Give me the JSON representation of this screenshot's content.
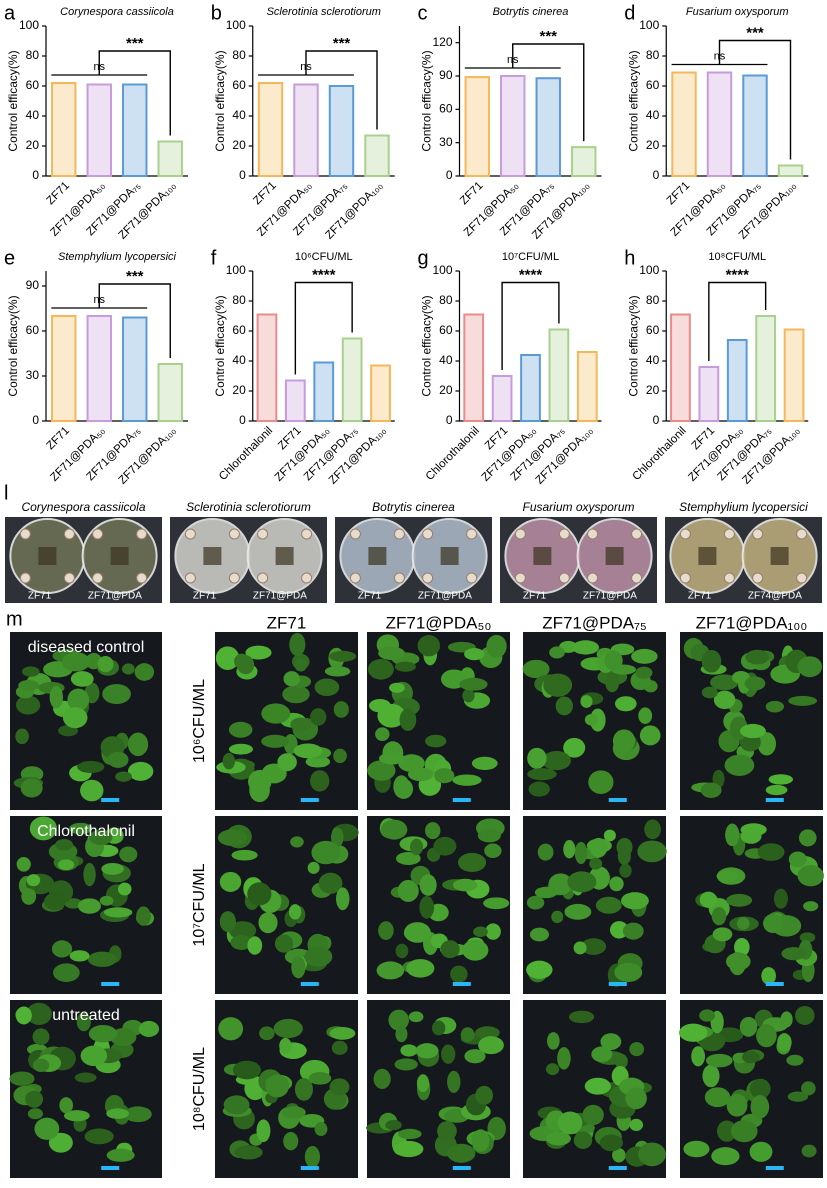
{
  "chart_data": [
    {
      "type": "bar",
      "panel": "a",
      "title": "Corynespora cassiicola",
      "title_italic": true,
      "ylabel": "Control efficacy(%)",
      "categories": [
        "ZF71",
        "ZF71@PDA₅₀",
        "ZF71@PDA₇₅",
        "ZF71@PDA₁₀₀"
      ],
      "values": [
        62,
        61,
        61,
        23
      ],
      "colors": [
        "#f4b85a",
        "#c79bdc",
        "#5b9bd5",
        "#a9d18e"
      ],
      "ylim": [
        0,
        100
      ],
      "yticks": [
        0,
        20,
        40,
        60,
        80,
        100
      ],
      "significance": [
        {
          "label": "ns",
          "categories": [
            "ZF71",
            "ZF71@PDA₇₅"
          ]
        },
        {
          "label": "***",
          "categories": [
            "ZF71@PDA₅₀",
            "ZF71@PDA₁₀₀"
          ]
        }
      ]
    },
    {
      "type": "bar",
      "panel": "b",
      "title": "Sclerotinia sclerotiorum",
      "title_italic": true,
      "ylabel": "Control efficacy(%)",
      "categories": [
        "ZF71",
        "ZF71@PDA₅₀",
        "ZF71@PDA₇₅",
        "ZF71@PDA₁₀₀"
      ],
      "values": [
        62,
        61,
        60,
        27
      ],
      "colors": [
        "#f4b85a",
        "#c79bdc",
        "#5b9bd5",
        "#a9d18e"
      ],
      "ylim": [
        0,
        100
      ],
      "yticks": [
        0,
        20,
        40,
        60,
        80,
        100
      ],
      "significance": [
        {
          "label": "ns",
          "categories": [
            "ZF71",
            "ZF71@PDA₇₅"
          ]
        },
        {
          "label": "***",
          "categories": [
            "ZF71@PDA₅₀",
            "ZF71@PDA₁₀₀"
          ]
        }
      ]
    },
    {
      "type": "bar",
      "panel": "c",
      "title": "Botrytis cinerea",
      "title_italic": true,
      "ylabel": "Control efficacy(%)",
      "categories": [
        "ZF71",
        "ZF71@PDA₅₀",
        "ZF71@PDA₇₅",
        "ZF71@PDA₁₀₀"
      ],
      "values": [
        89,
        90,
        88,
        26
      ],
      "colors": [
        "#f4b85a",
        "#c79bdc",
        "#5b9bd5",
        "#a9d18e"
      ],
      "ylim": [
        0,
        135
      ],
      "yticks": [
        0,
        30,
        60,
        90,
        120
      ],
      "significance": [
        {
          "label": "ns",
          "categories": [
            "ZF71",
            "ZF71@PDA₇₅"
          ]
        },
        {
          "label": "***",
          "categories": [
            "ZF71@PDA₅₀",
            "ZF71@PDA₁₀₀"
          ]
        }
      ]
    },
    {
      "type": "bar",
      "panel": "d",
      "title": "Fusarium oxysporum",
      "title_italic": true,
      "ylabel": "Control efficacy(%)",
      "categories": [
        "ZF71",
        "ZF71@PDA₅₀",
        "ZF71@PDA₇₅",
        "ZF71@PDA₁₀₀"
      ],
      "values": [
        69,
        69,
        67,
        7
      ],
      "colors": [
        "#f4b85a",
        "#c79bdc",
        "#5b9bd5",
        "#a9d18e"
      ],
      "ylim": [
        0,
        100
      ],
      "yticks": [
        0,
        20,
        40,
        60,
        80,
        100
      ],
      "significance": [
        {
          "label": "ns",
          "categories": [
            "ZF71",
            "ZF71@PDA₇₅"
          ]
        },
        {
          "label": "***",
          "categories": [
            "ZF71@PDA₅₀",
            "ZF71@PDA₁₀₀"
          ]
        }
      ]
    },
    {
      "type": "bar",
      "panel": "e",
      "title": "Stemphylium lycopersici",
      "title_italic": true,
      "ylabel": "Control efficacy(%)",
      "categories": [
        "ZF71",
        "ZF71@PDA₅₀",
        "ZF71@PDA₇₅",
        "ZF71@PDA₁₀₀"
      ],
      "values": [
        70,
        70,
        69,
        38
      ],
      "colors": [
        "#f4b85a",
        "#c79bdc",
        "#5b9bd5",
        "#a9d18e"
      ],
      "ylim": [
        0,
        100
      ],
      "yticks": [
        0,
        30,
        60,
        90
      ],
      "significance": [
        {
          "label": "ns",
          "categories": [
            "ZF71",
            "ZF71@PDA₇₅"
          ]
        },
        {
          "label": "***",
          "categories": [
            "ZF71@PDA₅₀",
            "ZF71@PDA₁₀₀"
          ]
        }
      ]
    },
    {
      "type": "bar",
      "panel": "f",
      "title": "10⁶CFU/ML",
      "title_italic": false,
      "ylabel": "Control efficacy(%)",
      "categories": [
        "Chlorothalonil",
        "ZF71",
        "ZF71@PDA₅₀",
        "ZF71@PDA₇₅",
        "ZF71@PDA₁₀₀"
      ],
      "values": [
        71,
        27,
        39,
        55,
        37
      ],
      "colors": [
        "#e98b8b",
        "#c79bdc",
        "#5b9bd5",
        "#a9d18e",
        "#f4b85a"
      ],
      "ylim": [
        0,
        100
      ],
      "yticks": [
        0,
        20,
        40,
        60,
        80,
        100
      ],
      "significance": [
        {
          "label": "****",
          "categories": [
            "ZF71",
            "ZF71@PDA₇₅"
          ]
        }
      ]
    },
    {
      "type": "bar",
      "panel": "g",
      "title": "10⁷CFU/ML",
      "title_italic": false,
      "ylabel": "Control efficacy(%)",
      "categories": [
        "Chlorothalonil",
        "ZF71",
        "ZF71@PDA₅₀",
        "ZF71@PDA₇₅",
        "ZF71@PDA₁₀₀"
      ],
      "values": [
        71,
        30,
        44,
        61,
        46
      ],
      "colors": [
        "#e98b8b",
        "#c79bdc",
        "#5b9bd5",
        "#a9d18e",
        "#f4b85a"
      ],
      "ylim": [
        0,
        100
      ],
      "yticks": [
        0,
        20,
        40,
        60,
        80,
        100
      ],
      "significance": [
        {
          "label": "****",
          "categories": [
            "ZF71",
            "ZF71@PDA₇₅"
          ]
        }
      ]
    },
    {
      "type": "bar",
      "panel": "h",
      "title": "10⁸CFU/ML",
      "title_italic": false,
      "ylabel": "Control efficacy(%)",
      "categories": [
        "Chlorothalonil",
        "ZF71",
        "ZF71@PDA₅₀",
        "ZF71@PDA₇₅",
        "ZF71@PDA₁₀₀"
      ],
      "values": [
        71,
        36,
        54,
        70,
        61
      ],
      "colors": [
        "#e98b8b",
        "#c79bdc",
        "#5b9bd5",
        "#a9d18e",
        "#f4b85a"
      ],
      "ylim": [
        0,
        100
      ],
      "yticks": [
        0,
        20,
        40,
        60,
        80,
        100
      ],
      "significance": [
        {
          "label": "****",
          "categories": [
            "ZF71",
            "ZF71@PDA₇₅"
          ]
        }
      ]
    }
  ],
  "panel_l": {
    "label": "l",
    "plates": [
      {
        "species": "Corynespora cassiicola",
        "left": "ZF71",
        "right": "ZF71@PDA"
      },
      {
        "species": "Sclerotinia sclerotiorum",
        "left": "ZF71",
        "right": "ZF71@PDA"
      },
      {
        "species": "Botrytis cinerea",
        "left": "ZF71",
        "right": "ZF71@PDA"
      },
      {
        "species": "Fusarium oxysporum",
        "left": "ZF71",
        "right": "ZF71@PDA"
      },
      {
        "species": "Stemphylium lycopersici",
        "left": "ZF71",
        "right": "ZF74@PDA"
      }
    ]
  },
  "panel_m": {
    "label": "m",
    "controls": [
      "diseased control",
      "Chlorothalonil",
      "untreated"
    ],
    "columns": [
      "ZF71",
      "ZF71@PDA₅₀",
      "ZF71@PDA₇₅",
      "ZF71@PDA₁₀₀"
    ],
    "rows": [
      "10⁶CFU/ML",
      "10⁷CFU/ML",
      "10⁸CFU/ML"
    ]
  }
}
